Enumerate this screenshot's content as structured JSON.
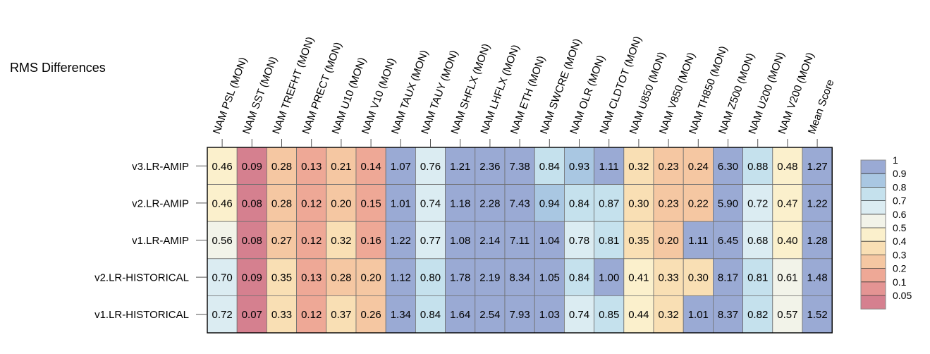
{
  "title": "RMS Differences",
  "chart_data": {
    "type": "heatmap",
    "title": "RMS Differences",
    "columns": [
      "NAM PSL (MON)",
      "NAM SST (MON)",
      "NAM TREFHT (MON)",
      "NAM PRECT (MON)",
      "NAM U10 (MON)",
      "NAM V10 (MON)",
      "NAM TAUX (MON)",
      "NAM TAUY (MON)",
      "NAM SHFLX (MON)",
      "NAM LHFLX (MON)",
      "NAM ETH (MON)",
      "NAM SWCRE (MON)",
      "NAM OLR (MON)",
      "NAM CLDTOT (MON)",
      "NAM U850 (MON)",
      "NAM V850 (MON)",
      "NAM TH850 (MON)",
      "NAM Z500 (MON)",
      "NAM U200 (MON)",
      "NAM V200 (MON)",
      "Mean Score"
    ],
    "rows": [
      "v3.LR-AMIP",
      "v2.LR-AMIP",
      "v1.LR-AMIP",
      "v2.LR-HISTORICAL",
      "v1.LR-HISTORICAL"
    ],
    "values": [
      [
        "0.46",
        "0.09",
        "0.28",
        "0.13",
        "0.21",
        "0.14",
        "1.07",
        "0.76",
        "1.21",
        "2.36",
        "7.38",
        "0.84",
        "0.93",
        "1.11",
        "0.32",
        "0.23",
        "0.24",
        "6.30",
        "0.88",
        "0.48",
        "1.27"
      ],
      [
        "0.46",
        "0.08",
        "0.28",
        "0.12",
        "0.20",
        "0.15",
        "1.01",
        "0.74",
        "1.18",
        "2.28",
        "7.43",
        "0.94",
        "0.84",
        "0.87",
        "0.30",
        "0.23",
        "0.22",
        "5.90",
        "0.72",
        "0.47",
        "1.22"
      ],
      [
        "0.56",
        "0.08",
        "0.27",
        "0.12",
        "0.32",
        "0.16",
        "1.22",
        "0.77",
        "1.08",
        "2.14",
        "7.11",
        "1.04",
        "0.78",
        "0.81",
        "0.35",
        "0.20",
        "1.11",
        "6.45",
        "0.68",
        "0.40",
        "1.28"
      ],
      [
        "0.70",
        "0.09",
        "0.35",
        "0.13",
        "0.28",
        "0.20",
        "1.12",
        "0.80",
        "1.78",
        "2.19",
        "8.34",
        "1.05",
        "0.84",
        "1.00",
        "0.41",
        "0.33",
        "0.30",
        "8.17",
        "0.81",
        "0.61",
        "1.48"
      ],
      [
        "0.72",
        "0.07",
        "0.33",
        "0.12",
        "0.37",
        "0.26",
        "1.34",
        "0.84",
        "1.64",
        "2.54",
        "7.93",
        "1.03",
        "0.74",
        "0.85",
        "0.44",
        "0.32",
        "1.01",
        "8.37",
        "0.82",
        "0.57",
        "1.52"
      ]
    ],
    "colorbar": {
      "boundaries": [
        0,
        0.05,
        0.1,
        0.2,
        0.3,
        0.4,
        0.5,
        0.6,
        0.7,
        0.8,
        0.9,
        1,
        10
      ],
      "tick_labels": [
        "0.05",
        "0.1",
        "0.2",
        "0.3",
        "0.4",
        "0.5",
        "0.6",
        "0.7",
        "0.8",
        "0.9",
        "1"
      ],
      "colors": [
        "#d5808f",
        "#e49493",
        "#eea896",
        "#f5c7a2",
        "#f9dfb4",
        "#fbf0cc",
        "#f2f3e9",
        "#dbecf2",
        "#c5e1ed",
        "#a9c7e2",
        "#9aaad4"
      ]
    },
    "cell_color_bands": [
      [
        "#fbf0cc",
        "#d5808f",
        "#f5c7a2",
        "#eea896",
        "#f5c7a2",
        "#eea896",
        "#9aaad4",
        "#dbecf2",
        "#9aaad4",
        "#9aaad4",
        "#9aaad4",
        "#c5e1ed",
        "#a9c7e2",
        "#9aaad4",
        "#f9dfb4",
        "#f5c7a2",
        "#f5c7a2",
        "#9aaad4",
        "#c5e1ed",
        "#fbf0cc",
        "#9aaad4"
      ],
      [
        "#fbf0cc",
        "#d5808f",
        "#f5c7a2",
        "#eea896",
        "#f5c7a2",
        "#eea896",
        "#9aaad4",
        "#dbecf2",
        "#9aaad4",
        "#9aaad4",
        "#9aaad4",
        "#a9c7e2",
        "#c5e1ed",
        "#c5e1ed",
        "#f9dfb4",
        "#f5c7a2",
        "#f5c7a2",
        "#9aaad4",
        "#dbecf2",
        "#fbf0cc",
        "#9aaad4"
      ],
      [
        "#f2f3e9",
        "#d5808f",
        "#f5c7a2",
        "#eea896",
        "#f9dfb4",
        "#eea896",
        "#9aaad4",
        "#dbecf2",
        "#9aaad4",
        "#9aaad4",
        "#9aaad4",
        "#9aaad4",
        "#dbecf2",
        "#c5e1ed",
        "#f9dfb4",
        "#f5c7a2",
        "#9aaad4",
        "#9aaad4",
        "#dbecf2",
        "#fbf0cc",
        "#9aaad4"
      ],
      [
        "#dbecf2",
        "#d5808f",
        "#f9dfb4",
        "#eea896",
        "#f5c7a2",
        "#f5c7a2",
        "#9aaad4",
        "#c5e1ed",
        "#9aaad4",
        "#9aaad4",
        "#9aaad4",
        "#9aaad4",
        "#c5e1ed",
        "#9aaad4",
        "#fbf0cc",
        "#f9dfb4",
        "#f9dfb4",
        "#9aaad4",
        "#c5e1ed",
        "#f2f3e9",
        "#9aaad4"
      ],
      [
        "#dbecf2",
        "#d5808f",
        "#f9dfb4",
        "#eea896",
        "#f9dfb4",
        "#f5c7a2",
        "#9aaad4",
        "#c5e1ed",
        "#9aaad4",
        "#9aaad4",
        "#9aaad4",
        "#9aaad4",
        "#dbecf2",
        "#c5e1ed",
        "#fbf0cc",
        "#f9dfb4",
        "#9aaad4",
        "#9aaad4",
        "#c5e1ed",
        "#f2f3e9",
        "#9aaad4"
      ]
    ]
  }
}
